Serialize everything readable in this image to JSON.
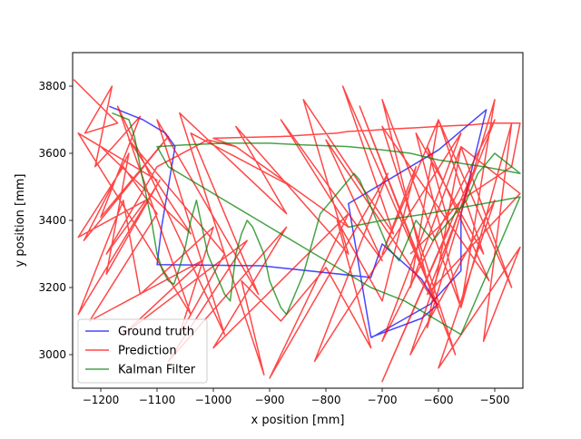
{
  "chart_data": {
    "type": "line",
    "xlabel": "x position [mm]",
    "ylabel": "y position [mm]",
    "xlim": [
      -1250,
      -450
    ],
    "ylim": [
      2900,
      3900
    ],
    "xticks": [
      -1200,
      -1100,
      -1000,
      -900,
      -800,
      -700,
      -600,
      -500
    ],
    "yticks": [
      3000,
      3200,
      3400,
      3600,
      3800
    ],
    "xtick_labels": [
      "−1200",
      "−1100",
      "−1000",
      "−900",
      "−800",
      "−700",
      "−600",
      "−500"
    ],
    "ytick_labels": [
      "3000",
      "3200",
      "3400",
      "3600",
      "3800"
    ],
    "grid": false,
    "legend_position": "lower-left",
    "series": [
      {
        "name": "Ground truth",
        "color": "#0000ff",
        "x": [
          -1185,
          -1125,
          -1085,
          -1068,
          -1080,
          -1092,
          -1100,
          -915,
          -720,
          -700,
          -630,
          -602,
          -630,
          -720,
          -760,
          -600,
          -515,
          -560,
          -560,
          -615,
          -720
        ],
        "y": [
          3740,
          3700,
          3660,
          3620,
          3500,
          3380,
          3268,
          3265,
          3230,
          3330,
          3225,
          3148,
          3108,
          3052,
          3450,
          3610,
          3730,
          3420,
          3250,
          3150,
          3050
        ]
      },
      {
        "name": "Prediction",
        "color": "#ff0000",
        "x": [
          -1248,
          -1170,
          -1228,
          -1180,
          -1210,
          -1130,
          -1200,
          -1080,
          -1230,
          -1150,
          -1190,
          -1095,
          -1240,
          -1160,
          -1130,
          -1000,
          -1060,
          -980,
          -910,
          -950,
          -880,
          -800,
          -720,
          -780,
          -700,
          -640,
          -700,
          -600,
          -650,
          -560,
          -620,
          -500,
          -560,
          -470,
          -520,
          -455,
          -600,
          -500,
          -650,
          -540,
          -700,
          -580,
          -620,
          -510,
          -700,
          -570,
          -740,
          -600,
          -800,
          -700,
          -880,
          -760,
          -960,
          -860,
          -1040,
          -920,
          -1100,
          -980,
          -1170,
          -1040,
          -1240,
          -1100,
          -1200,
          -1040,
          -1150,
          -980,
          -1060,
          -870,
          -960,
          -760,
          -840,
          -680,
          -770,
          -620,
          -700,
          -560,
          -640,
          -520,
          -600,
          -470,
          -560,
          -455,
          -620,
          -500,
          -700,
          -560,
          -820,
          -690,
          -900,
          -760,
          -1000,
          -870,
          -1080,
          -940,
          -1160,
          -1020,
          -1220,
          -1100,
          -1160,
          -1240,
          -1120,
          -1190,
          -1100,
          -1010,
          -960,
          -1000,
          -880,
          -780,
          -760,
          -720,
          -690,
          -640,
          -600,
          -540,
          -510,
          -455,
          -470,
          -560,
          -600,
          -650
        ],
        "y": [
          3820,
          3690,
          3660,
          3800,
          3560,
          3710,
          3410,
          3650,
          3340,
          3600,
          3240,
          3520,
          3120,
          3460,
          3180,
          3380,
          3060,
          3300,
          2940,
          3220,
          3100,
          3260,
          3020,
          3400,
          3160,
          3560,
          3300,
          3700,
          3200,
          3620,
          3080,
          3760,
          3140,
          3690,
          3040,
          3320,
          2960,
          3460,
          3000,
          3540,
          2920,
          3380,
          3620,
          3220,
          3680,
          3000,
          3740,
          3140,
          3640,
          3280,
          3700,
          3380,
          3620,
          3500,
          3660,
          3180,
          3700,
          3060,
          3740,
          3120,
          3660,
          3520,
          3620,
          3360,
          3640,
          3300,
          3720,
          3420,
          3680,
          3300,
          3760,
          3360,
          3800,
          3220,
          3760,
          3140,
          3660,
          3300,
          3700,
          3200,
          3620,
          3480,
          3180,
          3700,
          3040,
          3660,
          2980,
          3540,
          2930,
          3420,
          3020,
          3380,
          2980,
          3340,
          3060,
          3280,
          3100,
          3420,
          3560,
          3350,
          3460,
          3300,
          3560,
          3640,
          3620,
          3645,
          3650,
          3660,
          3665,
          3668,
          3672,
          3676,
          3680,
          3685,
          3690,
          3690,
          3560,
          3460,
          3380,
          3300
        ]
      },
      {
        "name": "Kalman Filter",
        "color": "#008000",
        "x": [
          -1180,
          -1150,
          -1140,
          -1130,
          -1120,
          -1110,
          -1100,
          -1090,
          -1080,
          -1070,
          -1060,
          -1050,
          -1040,
          -1030,
          -1020,
          -1010,
          -1000,
          -990,
          -980,
          -970,
          -960,
          -950,
          -940,
          -930,
          -920,
          -910,
          -900,
          -890,
          -880,
          -870,
          -860,
          -850,
          -840,
          -830,
          -820,
          -810,
          -800,
          -790,
          -780,
          -770,
          -760,
          -750,
          -740,
          -730,
          -720,
          -710,
          -700,
          -690,
          -680,
          -670,
          -660,
          -650,
          -640,
          -630,
          -620,
          -610,
          -600,
          -590,
          -580,
          -570,
          -560,
          -550,
          -540,
          -530,
          -520,
          -510,
          -500,
          -455,
          -520,
          -600,
          -650,
          -700,
          -760,
          -840,
          -900,
          -980,
          -1050,
          -1100,
          -1080,
          -1040,
          -1000,
          -960,
          -920,
          -880,
          -840,
          -800,
          -760,
          -720,
          -690,
          -660,
          -640,
          -620,
          -600,
          -580,
          -560,
          -455,
          -520,
          -620,
          -700,
          -760
        ],
        "y": [
          3720,
          3700,
          3650,
          3560,
          3480,
          3400,
          3300,
          3250,
          3220,
          3210,
          3260,
          3320,
          3400,
          3460,
          3380,
          3300,
          3260,
          3220,
          3180,
          3160,
          3300,
          3360,
          3400,
          3380,
          3340,
          3300,
          3220,
          3180,
          3140,
          3120,
          3160,
          3200,
          3240,
          3300,
          3360,
          3420,
          3440,
          3460,
          3480,
          3500,
          3520,
          3540,
          3520,
          3480,
          3440,
          3400,
          3360,
          3320,
          3300,
          3280,
          3320,
          3360,
          3400,
          3380,
          3360,
          3340,
          3360,
          3380,
          3400,
          3420,
          3440,
          3460,
          3500,
          3540,
          3560,
          3580,
          3600,
          3540,
          3560,
          3580,
          3600,
          3610,
          3620,
          3625,
          3630,
          3630,
          3625,
          3620,
          3560,
          3520,
          3480,
          3440,
          3400,
          3360,
          3320,
          3280,
          3240,
          3200,
          3180,
          3160,
          3140,
          3120,
          3100,
          3080,
          3060,
          3470,
          3450,
          3420,
          3400,
          3380
        ]
      }
    ]
  }
}
